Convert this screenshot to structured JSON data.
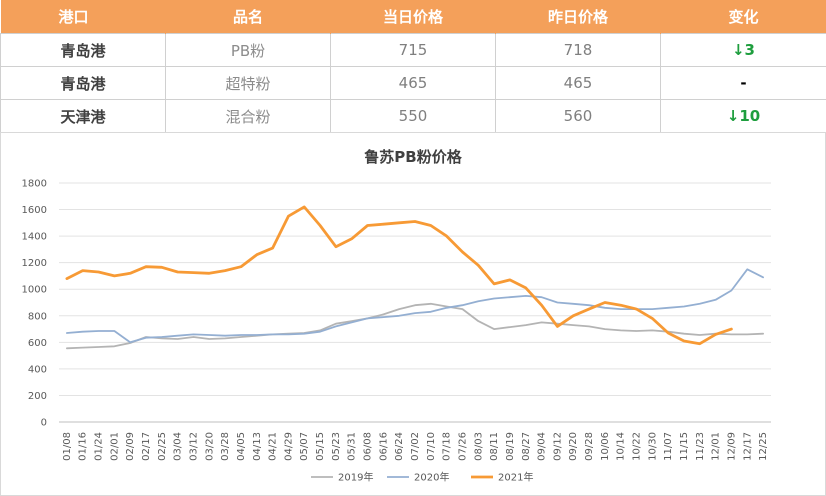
{
  "table": {
    "headers": [
      "港口",
      "品名",
      "当日价格",
      "昨日价格",
      "变化"
    ],
    "rows": [
      {
        "port": "青岛港",
        "product": "PB粉",
        "today": "715",
        "yesterday": "718",
        "change": "↓3"
      },
      {
        "port": "青岛港",
        "product": "超特粉",
        "today": "465",
        "yesterday": "465",
        "change": "-"
      },
      {
        "port": "天津港",
        "product": "混合粉",
        "today": "550",
        "yesterday": "560",
        "change": "↓10"
      }
    ]
  },
  "colors": {
    "header_bg": "#f4a05a",
    "down": "#1e9e3e",
    "series_2019": "#b4b4b4",
    "series_2020": "#94afd2",
    "series_2021": "#f79a35"
  },
  "chart_data": {
    "type": "line",
    "title": "鲁苏PB粉价格",
    "xlabel": "",
    "ylabel": "",
    "ylim": [
      0,
      1800
    ],
    "yticks": [
      0,
      200,
      400,
      600,
      800,
      1000,
      1200,
      1400,
      1600,
      1800
    ],
    "categories": [
      "01/08",
      "01/16",
      "01/24",
      "02/01",
      "02/09",
      "02/17",
      "02/25",
      "03/04",
      "03/12",
      "03/20",
      "03/28",
      "04/05",
      "04/13",
      "04/21",
      "04/29",
      "05/07",
      "05/15",
      "05/23",
      "05/31",
      "06/08",
      "06/16",
      "06/24",
      "07/02",
      "07/10",
      "07/18",
      "07/26",
      "08/03",
      "08/11",
      "08/19",
      "08/27",
      "09/04",
      "09/12",
      "09/20",
      "09/28",
      "10/06",
      "10/14",
      "10/22",
      "10/30",
      "11/07",
      "11/15",
      "11/23",
      "12/01",
      "12/09",
      "12/17",
      "12/25"
    ],
    "grid": true,
    "legend": "bottom",
    "series": [
      {
        "name": "2019年",
        "values": [
          555,
          560,
          565,
          570,
          595,
          640,
          630,
          625,
          640,
          625,
          630,
          640,
          650,
          660,
          665,
          670,
          690,
          740,
          760,
          780,
          810,
          850,
          880,
          890,
          870,
          850,
          760,
          700,
          715,
          730,
          750,
          740,
          730,
          720,
          700,
          690,
          685,
          690,
          680,
          665,
          655,
          665,
          660,
          660,
          665
        ]
      },
      {
        "name": "2020年",
        "values": [
          670,
          680,
          685,
          685,
          600,
          635,
          640,
          650,
          660,
          655,
          650,
          655,
          655,
          660,
          660,
          665,
          680,
          720,
          750,
          780,
          790,
          800,
          820,
          830,
          860,
          880,
          910,
          930,
          940,
          950,
          940,
          900,
          890,
          880,
          860,
          850,
          850,
          850,
          860,
          870,
          890,
          920,
          990,
          1150,
          1090
        ]
      },
      {
        "name": "2021年",
        "values": [
          1080,
          1140,
          1130,
          1100,
          1120,
          1170,
          1165,
          1130,
          1125,
          1120,
          1140,
          1170,
          1260,
          1310,
          1550,
          1620,
          1480,
          1320,
          1380,
          1480,
          1490,
          1500,
          1510,
          1480,
          1400,
          1280,
          1180,
          1040,
          1070,
          1010,
          880,
          720,
          800,
          850,
          900,
          880,
          850,
          780,
          670,
          610,
          590,
          660,
          700,
          null,
          null
        ]
      }
    ]
  }
}
